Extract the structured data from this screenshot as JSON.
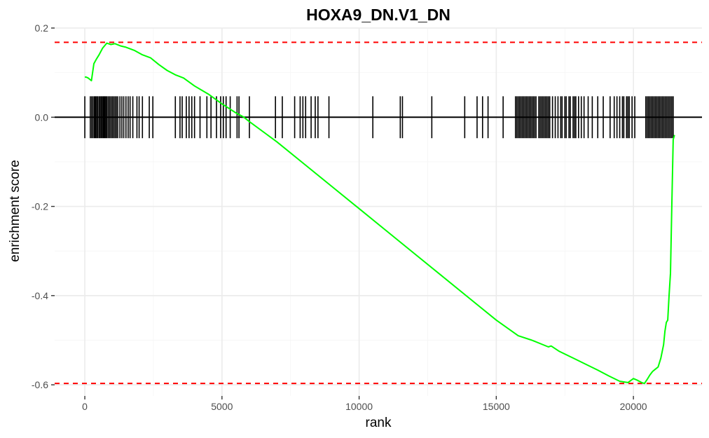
{
  "chart_data": {
    "type": "line",
    "title": "HOXA9_DN.V1_DN",
    "xlabel": "rank",
    "ylabel": "enrichment score",
    "xlim": [
      -1100,
      22500
    ],
    "ylim": [
      -0.625,
      0.2
    ],
    "x_ticks": [
      0,
      5000,
      10000,
      15000,
      20000
    ],
    "x_tick_labels": [
      "0",
      "5000",
      "10000",
      "15000",
      "20000"
    ],
    "y_ticks": [
      0.2,
      0.0,
      -0.2,
      -0.4,
      -0.6
    ],
    "y_tick_labels": [
      "0.2",
      "0.0",
      "-0.2",
      "-0.4",
      "-0.6"
    ],
    "grid": true,
    "colors": {
      "curve": "#00ff00",
      "threshold": "#ff0000",
      "hits": "#000000",
      "zero_line": "#000000"
    },
    "thresholds": [
      0.168,
      -0.597
    ],
    "series": [
      {
        "x": [
          0,
          50,
          120,
          240,
          330,
          420,
          520,
          650,
          800,
          950,
          1100,
          1300,
          1500,
          1800,
          2100,
          2400,
          2700,
          3000,
          3300,
          3600,
          4000,
          4500,
          5000,
          5500,
          5800,
          6000,
          7000,
          8000,
          9000,
          10000,
          11000,
          12000,
          13000,
          14000,
          15000,
          15800,
          16300,
          16900,
          17000,
          17300,
          17800,
          18300,
          18700,
          19100,
          19500,
          19800,
          20000,
          20150,
          20300,
          20400,
          20500,
          20600,
          20700,
          20800,
          20900,
          21000,
          21100,
          21150,
          21200,
          21250,
          21300,
          21350,
          21400,
          21450,
          21500
        ],
        "y": [
          0.09,
          0.09,
          0.088,
          0.082,
          0.12,
          0.13,
          0.14,
          0.155,
          0.166,
          0.163,
          0.165,
          0.16,
          0.157,
          0.15,
          0.14,
          0.133,
          0.118,
          0.105,
          0.095,
          0.088,
          0.07,
          0.052,
          0.03,
          0.01,
          0.0,
          -0.01,
          -0.055,
          -0.105,
          -0.155,
          -0.205,
          -0.255,
          -0.305,
          -0.355,
          -0.405,
          -0.455,
          -0.49,
          -0.5,
          -0.515,
          -0.513,
          -0.525,
          -0.54,
          -0.555,
          -0.567,
          -0.58,
          -0.592,
          -0.595,
          -0.586,
          -0.59,
          -0.595,
          -0.597,
          -0.588,
          -0.578,
          -0.57,
          -0.565,
          -0.56,
          -0.54,
          -0.51,
          -0.48,
          -0.46,
          -0.455,
          -0.4,
          -0.35,
          -0.2,
          -0.05,
          -0.04
        ]
      }
    ],
    "hits": [
      0,
      200,
      250,
      300,
      350,
      390,
      430,
      470,
      520,
      560,
      600,
      640,
      680,
      720,
      760,
      800,
      850,
      900,
      950,
      1000,
      1050,
      1100,
      1150,
      1200,
      1280,
      1350,
      1420,
      1500,
      1580,
      1650,
      1750,
      1900,
      1980,
      2100,
      2350,
      2480,
      3300,
      3470,
      3550,
      3700,
      3800,
      3900,
      4000,
      4200,
      4450,
      4600,
      4800,
      4950,
      5050,
      5150,
      5300,
      5550,
      5620,
      6000,
      6950,
      7200,
      7650,
      7850,
      7950,
      8050,
      8250,
      8400,
      8500,
      8900,
      10500,
      11500,
      11580,
      12650,
      13850,
      14300,
      14500,
      14700,
      15250,
      15700,
      15750,
      15800,
      15850,
      15900,
      15950,
      16000,
      16050,
      16100,
      16150,
      16200,
      16250,
      16300,
      16350,
      16400,
      16450,
      16550,
      16600,
      16650,
      16700,
      16750,
      16800,
      16850,
      16900,
      16950,
      17050,
      17150,
      17250,
      17350,
      17400,
      17500,
      17550,
      17650,
      17700,
      17800,
      17850,
      17900,
      18000,
      18100,
      18200,
      18350,
      18500,
      18700,
      18900,
      19150,
      19300,
      19400,
      19500,
      19600,
      19650,
      19750,
      19800,
      19850,
      19950,
      20050,
      20450,
      20500,
      20550,
      20600,
      20650,
      20700,
      20750,
      20800,
      20850,
      20900,
      20950,
      21000,
      21050,
      21100,
      21150,
      21200,
      21250,
      21300,
      21350,
      21400,
      21450
    ]
  }
}
